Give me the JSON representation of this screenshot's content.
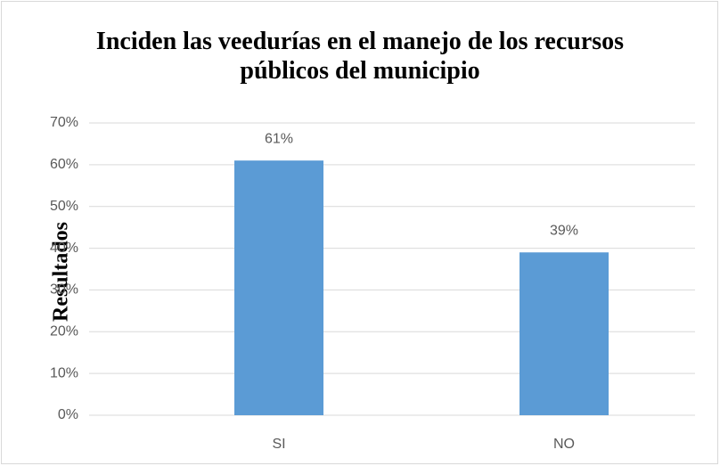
{
  "chart_data": {
    "type": "bar",
    "title": "Inciden las veedurías en el manejo de los recursos públicos del municipio",
    "y_label": "Resultados",
    "categories": [
      "SI",
      "NO"
    ],
    "values": [
      61,
      39
    ],
    "value_labels": [
      "61%",
      "39%"
    ],
    "color": "#5b9bd5",
    "ylim": [
      0,
      70
    ],
    "yticks": [
      {
        "value": 0,
        "label": "0%"
      },
      {
        "value": 10,
        "label": "10%"
      },
      {
        "value": 20,
        "label": "20%"
      },
      {
        "value": 30,
        "label": "30%"
      },
      {
        "value": 40,
        "label": "40%"
      },
      {
        "value": 50,
        "label": "50%"
      },
      {
        "value": 60,
        "label": "60%"
      },
      {
        "value": 70,
        "label": "70%"
      }
    ],
    "grid": true
  }
}
